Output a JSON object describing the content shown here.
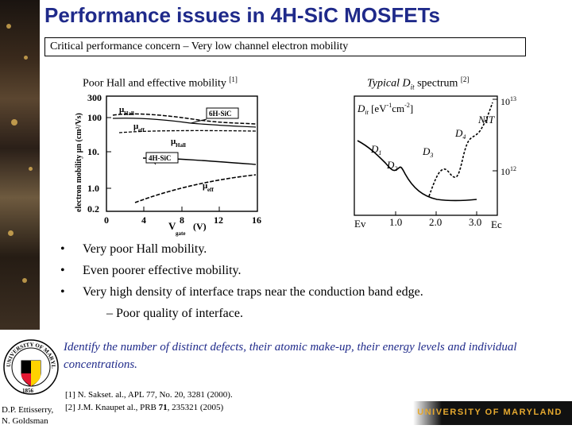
{
  "slide": {
    "title": "Performance issues in 4H-SiC MOSFETs",
    "concern": "Critical performance concern – Very low channel electron mobility"
  },
  "figure_left": {
    "caption": "Poor Hall and effective mobility",
    "ref": "[1]",
    "ylabel": "electron mobility  μn  (cm²/Vs)",
    "ytick_labels": [
      "300",
      "100",
      "10.",
      "1.0",
      "0.2"
    ],
    "xtick_labels": [
      "0",
      "4",
      "8",
      "12",
      "16"
    ],
    "xlabel": "V",
    "xlabel_sub": "gate",
    "xlabel_unit": "(V)",
    "labels": {
      "hall_top": "μ",
      "hall_top_sub": "Hall",
      "eff_top": "μ",
      "eff_top_sub": "eff",
      "hall_bot": "μ",
      "hall_bot_sub": "Hall",
      "eff_bot": "μ",
      "eff_bot_sub": "eff",
      "box_6h": "6H-SiC",
      "box_4h": "4H-SiC"
    }
  },
  "figure_right": {
    "caption_pre": "Typical D",
    "caption_sub": "it",
    "caption_post": " spectrum",
    "ref": "[2]",
    "unit_pre": "D",
    "unit_sub": "it",
    "unit_post": " [eV",
    "unit_exp1": "-1",
    "unit_mid": "cm",
    "unit_exp2": "-2",
    "unit_end": "]",
    "y_top": "10",
    "y_top_exp": "13",
    "y_bot": "10",
    "y_bot_exp": "12",
    "labels": {
      "nit": "NIT",
      "d1": "D",
      "d1s": "1",
      "d2": "D",
      "d2s": "2",
      "d3": "D",
      "d3s": "3",
      "d4": "D",
      "d4s": "4"
    },
    "x_labels": {
      "ev": "Ev",
      "t1": "1.0",
      "t2": "2.0",
      "t3": "3.0",
      "ec": "Ec"
    }
  },
  "bullets": [
    "Very poor Hall mobility.",
    "Even poorer effective mobility.",
    "Very high density of interface traps near the conduction band edge."
  ],
  "bullet_glyph": "•",
  "sub_bullet": "– Poor quality of interface.",
  "identify": "Identify the number of distinct defects, their atomic make-up, their energy levels and individual concentrations.",
  "references": {
    "ref1": "[1] N. Sakset. al., APL 77, No. 20, 3281 (2000).",
    "ref2_pre": "[2] J.M. Knaupet al., PRB ",
    "ref2_bold": "71",
    "ref2_post": ", 235321 (2005)"
  },
  "author": {
    "line1": "D.P. Ettisserry,",
    "line2": "N. Goldsman"
  },
  "logo": {
    "text": "UNIVERSITY OF MARYLAND",
    "year": "1856"
  },
  "banner": "UNIVERSITY OF MARYLAND"
}
